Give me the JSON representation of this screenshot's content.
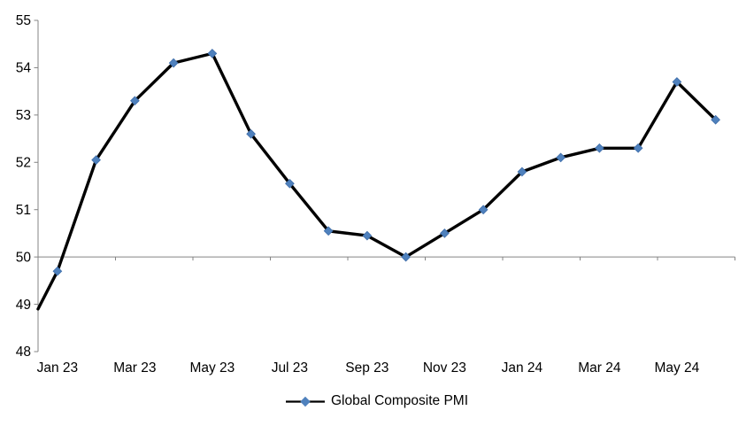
{
  "figure": {
    "background": "#ffffff"
  },
  "chart_data": {
    "type": "line",
    "title": "",
    "xlabel": "",
    "ylabel": "",
    "categories": [
      "Jan 23",
      "Feb 23",
      "Mar 23",
      "Apr 23",
      "May 23",
      "Jun 23",
      "Jul 23",
      "Aug 23",
      "Sep 23",
      "Oct 23",
      "Nov 23",
      "Dec 23",
      "Jan 24",
      "Feb 24",
      "Mar 24",
      "Apr 24",
      "May 24",
      "Jun 24"
    ],
    "series": [
      {
        "name": "Global Composite PMI",
        "values": [
          49.7,
          52.05,
          53.3,
          54.1,
          54.3,
          52.6,
          51.55,
          50.55,
          50.45,
          50.0,
          50.5,
          51.0,
          51.8,
          52.1,
          52.3,
          52.3,
          53.7,
          52.9
        ],
        "edge_start_value": 48.9,
        "line_color": "#000000",
        "line_width": 3.4,
        "marker": "diamond",
        "marker_color": "#4f81bd",
        "marker_edge_color": "#3e6da9",
        "marker_size": 9.6
      }
    ],
    "x_tick_labels": [
      "Jan 23",
      "Mar 23",
      "May 23",
      "Jul 23",
      "Sep 23",
      "Nov 23",
      "Jan 24",
      "Mar 24",
      "May 24"
    ],
    "y_ticks": [
      48,
      49,
      50,
      51,
      52,
      53,
      54,
      55
    ],
    "ylim": [
      48,
      55
    ],
    "category_axis_crosses_at": 50,
    "axis_color": "#848484",
    "text_color": "#000000",
    "tick_font_size": 15.5,
    "grid": false,
    "legend_position": "bottom-center"
  }
}
